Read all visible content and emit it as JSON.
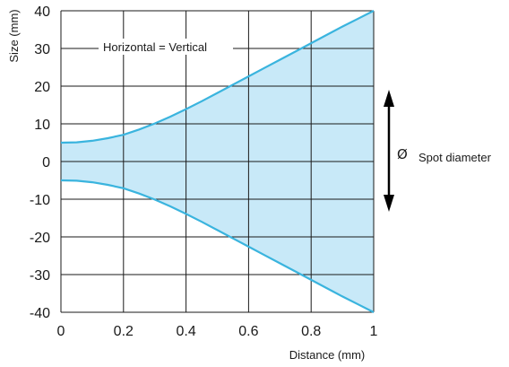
{
  "colors": {
    "curve": "#3ab4de",
    "fill": "#c8e9f8",
    "grid": "#1a1a1a",
    "arrow": "#000000"
  },
  "chart_data": {
    "type": "area",
    "title": "",
    "xlabel": "Distance (mm)",
    "ylabel": "Size (mm)",
    "xlim": [
      0,
      1
    ],
    "ylim": [
      -40,
      40
    ],
    "x_ticks": [
      0,
      0.2,
      0.4,
      0.6,
      0.8,
      1
    ],
    "x_tick_labels": [
      "0",
      "0.2",
      "0.4",
      "0.6",
      "0.8",
      "1"
    ],
    "y_ticks": [
      40,
      30,
      20,
      10,
      0,
      -10,
      -20,
      -30,
      -40
    ],
    "y_tick_labels": [
      "40",
      "30",
      "20",
      "10",
      "0",
      "-10",
      "-20",
      "-30",
      "-40"
    ],
    "grid": true,
    "x": [
      0,
      0.05,
      0.1,
      0.15,
      0.2,
      0.25,
      0.3,
      0.35,
      0.4,
      0.45,
      0.5,
      0.55,
      0.6,
      0.65,
      0.7,
      0.75,
      0.8,
      0.85,
      0.9,
      0.95,
      1
    ],
    "series": [
      {
        "values": [
          5,
          5.1,
          5.5,
          6.2,
          7.1,
          8.5,
          10.1,
          11.9,
          13.9,
          16,
          18.2,
          20.4,
          22.6,
          24.8,
          27,
          29.2,
          31.4,
          33.6,
          35.8,
          37.9,
          40
        ]
      },
      {
        "values": [
          -5,
          -5.1,
          -5.5,
          -6.2,
          -7.1,
          -8.5,
          -10.1,
          -11.9,
          -13.9,
          -16,
          -18.2,
          -20.4,
          -22.6,
          -24.8,
          -27,
          -29.2,
          -31.4,
          -33.6,
          -35.8,
          -37.9,
          -40
        ]
      }
    ],
    "annotations": {
      "equality": "Horizontal = Vertical",
      "diameter_symbol": "Ø",
      "diameter_label": "Spot diameter"
    }
  }
}
